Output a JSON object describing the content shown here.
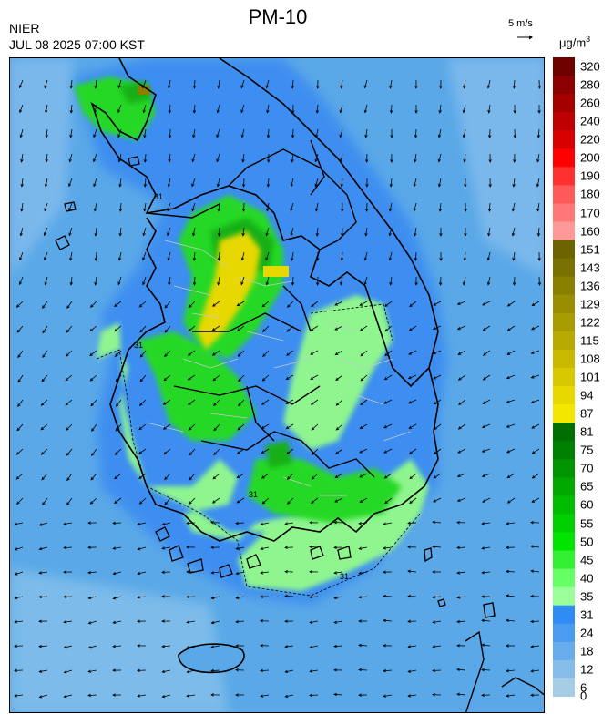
{
  "title": "PM-10",
  "org": "NIER",
  "timestamp": "JUL 08 2025 07:00 KST",
  "wind_scale": {
    "label": "5 m/s",
    "icon": "right-arrow-icon"
  },
  "unit": {
    "base": "μg/m",
    "exp": "3"
  },
  "contour_labels": [
    "31",
    "31",
    "31",
    "31"
  ],
  "legend": {
    "labels": [
      "320",
      "280",
      "260",
      "240",
      "220",
      "200",
      "190",
      "180",
      "170",
      "160",
      "151",
      "143",
      "136",
      "129",
      "122",
      "115",
      "108",
      "101",
      "94",
      "87",
      "81",
      "75",
      "70",
      "65",
      "60",
      "55",
      "50",
      "45",
      "40",
      "35",
      "31",
      "24",
      "18",
      "12",
      "6",
      "0"
    ],
    "colors": [
      "#6e0000",
      "#8b0000",
      "#a50000",
      "#bf0000",
      "#d80000",
      "#ff0000",
      "#ff3030",
      "#ff5a5a",
      "#ff7878",
      "#ff9898",
      "#6b6400",
      "#7a7200",
      "#8a8000",
      "#998e00",
      "#a89c00",
      "#b8aa00",
      "#c8b800",
      "#d8c800",
      "#e8d800",
      "#f5e600",
      "#006e00",
      "#008000",
      "#009400",
      "#00a800",
      "#00bc00",
      "#00d000",
      "#00e400",
      "#33f033",
      "#66ff66",
      "#99ff99",
      "#2f8cf2",
      "#4a9cf0",
      "#68acec",
      "#86bde8",
      "#a5cee6"
    ]
  },
  "colors": {
    "sea": "#5aa8e8",
    "land_low": "#3c8ef0",
    "green_light": "#8ff58f",
    "green": "#28d828",
    "green_dark": "#12b012",
    "yellow": "#e6d800"
  }
}
